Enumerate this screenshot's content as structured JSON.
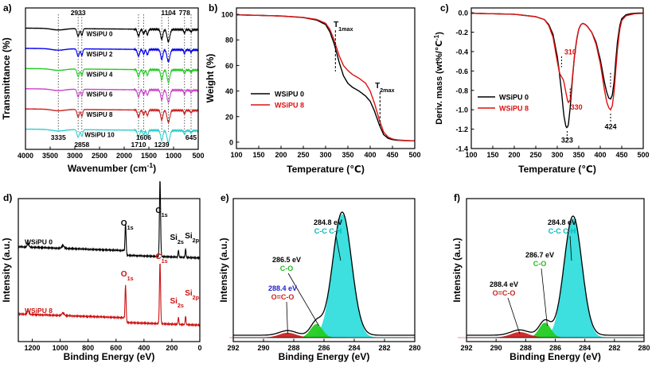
{
  "chart_data": [
    {
      "id": "a",
      "panel_label": "a)",
      "type": "line",
      "title": "",
      "xlabel": "Wavenumber (cm",
      "xlabel_sup": "-1",
      "xlabel_tail": ")",
      "ylabel": "Transmittance (%)",
      "xlim": [
        4000,
        500
      ],
      "ylim": [
        0,
        7
      ],
      "xticks": [
        "4000",
        "3500",
        "3000",
        "2500",
        "2000",
        "1500",
        "1000",
        "500"
      ],
      "xtick_values": [
        4000,
        3500,
        3000,
        2500,
        2000,
        1500,
        1000,
        500
      ],
      "baseline_offsets": [
        6,
        5,
        4,
        3,
        2,
        1
      ],
      "series": [
        {
          "name": "WSiPU 0",
          "color": "#000000"
        },
        {
          "name": "WSiPU 2",
          "color": "#0000ee"
        },
        {
          "name": "WSiPU 4",
          "color": "#22cc22"
        },
        {
          "name": "WSiPU 6",
          "color": "#cc44cc"
        },
        {
          "name": "WSiPU 8",
          "color": "#cc2222"
        },
        {
          "name": "WSiPU 10",
          "color": "#33cccc"
        }
      ],
      "peaks": [
        {
          "x": 3335,
          "depth": 0.1,
          "width": 130
        },
        {
          "x": 2933,
          "depth": 0.5,
          "width": 22
        },
        {
          "x": 2858,
          "depth": 0.45,
          "width": 18
        },
        {
          "x": 1710,
          "depth": 0.45,
          "width": 22
        },
        {
          "x": 1606,
          "depth": 0.3,
          "width": 18
        },
        {
          "x": 1530,
          "depth": 0.35,
          "width": 18
        },
        {
          "x": 1239,
          "depth": 0.65,
          "width": 22
        },
        {
          "x": 1104,
          "depth": 0.8,
          "width": 28
        },
        {
          "x": 778,
          "depth": 0.25,
          "width": 14
        },
        {
          "x": 645,
          "depth": 0.15,
          "width": 14
        }
      ],
      "top_labels": [
        {
          "x": 2933,
          "text": "2933"
        },
        {
          "x": 1104,
          "text": "1104"
        },
        {
          "x": 778,
          "text": "778"
        }
      ],
      "bottom_labels": [
        {
          "x": 3335,
          "text": "3335",
          "row": 0
        },
        {
          "x": 2858,
          "text": "2858",
          "row": 1
        },
        {
          "x": 1710,
          "text": "1710",
          "row": 1
        },
        {
          "x": 1606,
          "text": "1606",
          "row": 0
        },
        {
          "x": 1239,
          "text": "1239",
          "row": 1
        },
        {
          "x": 645,
          "text": "645",
          "row": 0
        }
      ],
      "guide_lines": [
        3335,
        2933,
        2858,
        1710,
        1606,
        1239,
        1104,
        778,
        645
      ]
    },
    {
      "id": "b",
      "panel_label": "b)",
      "type": "line",
      "xlabel": "Temperature (℃)",
      "ylabel": "Weight (%)",
      "xlim": [
        100,
        500
      ],
      "ylim": [
        -5,
        105
      ],
      "xticks": [
        100,
        150,
        200,
        250,
        300,
        350,
        400,
        450,
        500
      ],
      "yticks": [
        0,
        20,
        40,
        60,
        80,
        100
      ],
      "series": [
        {
          "name": "WSiPU 0",
          "color": "#000000",
          "x": [
            100,
            150,
            200,
            250,
            280,
            300,
            310,
            320,
            330,
            340,
            350,
            360,
            375,
            390,
            400,
            410,
            420,
            430,
            440,
            450,
            460,
            480,
            500
          ],
          "y": [
            99.6,
            99.2,
            98.7,
            97.5,
            95.5,
            92,
            86,
            76,
            63,
            52,
            46,
            43,
            40,
            36,
            32,
            24,
            14,
            6,
            3,
            2,
            1.5,
            1.2,
            1.0
          ]
        },
        {
          "name": "WSiPU 8",
          "color": "#dd1111",
          "x": [
            100,
            150,
            200,
            250,
            280,
            300,
            310,
            320,
            330,
            340,
            350,
            360,
            375,
            390,
            400,
            410,
            420,
            430,
            440,
            450,
            460,
            480,
            500
          ],
          "y": [
            99.6,
            99.2,
            98.7,
            97.6,
            96,
            93,
            88,
            79,
            68,
            60,
            56,
            53,
            50,
            46,
            40,
            30,
            18,
            8,
            4,
            2.5,
            1.8,
            1.3,
            1.0
          ]
        }
      ],
      "annotations": [
        {
          "text": "T",
          "sub": "1max",
          "x": 322
        },
        {
          "text": "T",
          "sub": "2max",
          "x": 422
        }
      ],
      "legend_placement": "center-left"
    },
    {
      "id": "c",
      "panel_label": "c)",
      "type": "line",
      "xlabel": "Temperature (℃)",
      "ylabel": "Deriv. mass (wt%/℃",
      "ylabel_sup": "-1",
      "ylabel_tail": ")",
      "xlim": [
        100,
        500
      ],
      "ylim": [
        -1.4,
        0.05
      ],
      "xticks": [
        100,
        150,
        200,
        250,
        300,
        350,
        400,
        450,
        500
      ],
      "yticks": [
        0.0,
        -0.2,
        -0.4,
        -0.6,
        -0.8,
        -1.0,
        -1.2,
        -1.4
      ],
      "ytick_labels": [
        "0.0",
        "-0.2",
        "-0.4",
        "-0.6",
        "-0.8",
        "-1.0",
        "-1.2",
        "-1.4"
      ],
      "series": [
        {
          "name": "WSiPU 0",
          "color": "#000000",
          "x": [
            100,
            150,
            200,
            250,
            270,
            280,
            290,
            300,
            305,
            310,
            315,
            320,
            323,
            326,
            330,
            335,
            340,
            345,
            350,
            355,
            360,
            365,
            370,
            380,
            390,
            400,
            405,
            410,
            415,
            420,
            424,
            428,
            432,
            436,
            440,
            445,
            450,
            460,
            470,
            480,
            490,
            500
          ],
          "y": [
            -0.005,
            -0.01,
            -0.015,
            -0.04,
            -0.07,
            -0.12,
            -0.22,
            -0.45,
            -0.62,
            -0.82,
            -1.05,
            -1.17,
            -1.19,
            -1.15,
            -0.98,
            -0.7,
            -0.45,
            -0.28,
            -0.17,
            -0.12,
            -0.11,
            -0.12,
            -0.14,
            -0.2,
            -0.3,
            -0.48,
            -0.6,
            -0.72,
            -0.82,
            -0.88,
            -0.89,
            -0.85,
            -0.72,
            -0.5,
            -0.3,
            -0.14,
            -0.06,
            -0.02,
            -0.01,
            -0.005,
            -0.003,
            -0.002
          ]
        },
        {
          "name": "WSiPU 8",
          "color": "#dd1111",
          "x": [
            100,
            150,
            200,
            250,
            270,
            280,
            290,
            300,
            305,
            310,
            315,
            320,
            325,
            330,
            335,
            340,
            345,
            350,
            355,
            360,
            365,
            370,
            380,
            390,
            400,
            405,
            410,
            415,
            420,
            424,
            428,
            432,
            436,
            440,
            445,
            450,
            460,
            470,
            480,
            490,
            500
          ],
          "y": [
            -0.005,
            -0.01,
            -0.015,
            -0.04,
            -0.07,
            -0.13,
            -0.25,
            -0.5,
            -0.62,
            -0.66,
            -0.7,
            -0.82,
            -0.93,
            -0.9,
            -0.68,
            -0.45,
            -0.28,
            -0.17,
            -0.12,
            -0.11,
            -0.12,
            -0.14,
            -0.2,
            -0.32,
            -0.52,
            -0.66,
            -0.8,
            -0.92,
            -0.98,
            -1.0,
            -0.96,
            -0.82,
            -0.6,
            -0.38,
            -0.18,
            -0.08,
            -0.03,
            -0.02,
            -0.01,
            -0.008,
            -0.005
          ]
        }
      ],
      "annotations": [
        {
          "text": "310",
          "x": 310,
          "y": -0.6,
          "color": "#dd1111"
        },
        {
          "text": "330",
          "x": 330,
          "y": -0.95,
          "color": "#dd1111"
        },
        {
          "text": "323",
          "x": 323,
          "y": -1.19,
          "color": "#000000"
        },
        {
          "text": "424",
          "x": 424,
          "y": -0.89,
          "color": "#000000"
        }
      ],
      "legend_placement": "lower-left"
    },
    {
      "id": "d",
      "panel_label": "d)",
      "type": "line",
      "xlabel": "Binding Energy (eV)",
      "ylabel": "Intensity (a.u.)",
      "xlim": [
        1300,
        0
      ],
      "ylim": [
        0,
        10
      ],
      "xticks": [
        1200,
        1000,
        800,
        600,
        400,
        200,
        0
      ],
      "series": [
        {
          "name": "WSiPU 0",
          "color": "#000000",
          "baseline": 6.3
        },
        {
          "name": "WSiPU 8",
          "color": "#cc1111",
          "baseline": 1.6
        }
      ],
      "peak_labels": [
        {
          "text": "C",
          "sub": "1s",
          "x": 285
        },
        {
          "text": "O",
          "sub": "1s",
          "x": 532
        },
        {
          "text": "Si",
          "sub": "2s",
          "x": 153
        },
        {
          "text": "Si",
          "sub": "2p",
          "x": 102
        }
      ]
    },
    {
      "id": "e",
      "panel_label": "e)",
      "type": "area",
      "xlabel": "Binding Energy (eV)",
      "ylabel": "Intensity (a.u.)",
      "xlim": [
        292,
        280
      ],
      "ylim": [
        0,
        1.08
      ],
      "xticks": [
        292,
        290,
        288,
        286,
        284,
        282,
        280
      ],
      "components": [
        {
          "name": "C-C  C-H",
          "center": 284.8,
          "height": 0.93,
          "sigma": 0.62,
          "color": "#33dddd"
        },
        {
          "name": "C-O",
          "center": 286.5,
          "height": 0.1,
          "sigma": 0.38,
          "color": "#22cc22"
        },
        {
          "name": "O=C-O",
          "center": 288.4,
          "height": 0.035,
          "sigma": 0.55,
          "color": "#cc2222"
        }
      ],
      "labels": [
        {
          "ev": "284.8 eV",
          "name": "C-C  C-H",
          "name_color": "#00bbbb",
          "ev_color": "#000000"
        },
        {
          "ev": "286.5 eV",
          "name": "C-O",
          "name_color": "#22bb22",
          "ev_color": "#000000"
        },
        {
          "ev": "288.4 eV",
          "name": "O=C-O",
          "name_color": "#cc2222",
          "ev_color": "#2222cc"
        }
      ]
    },
    {
      "id": "f",
      "panel_label": "f)",
      "type": "area",
      "xlabel": "Binding Energy (eV)",
      "ylabel": "Intensity (a.u.)",
      "xlim": [
        292,
        280
      ],
      "ylim": [
        0,
        1.08
      ],
      "xticks": [
        292,
        290,
        288,
        286,
        284,
        282,
        280
      ],
      "components": [
        {
          "name": "C-C  C-H",
          "center": 284.8,
          "height": 0.9,
          "sigma": 0.6,
          "color": "#33dddd"
        },
        {
          "name": "C-O",
          "center": 286.7,
          "height": 0.11,
          "sigma": 0.38,
          "color": "#22cc22"
        },
        {
          "name": "O=C-O",
          "center": 288.4,
          "height": 0.04,
          "sigma": 0.6,
          "color": "#cc2222"
        }
      ],
      "labels": [
        {
          "ev": "284.8 eV",
          "name": "C-C  C-H",
          "name_color": "#00bbbb",
          "ev_color": "#000000"
        },
        {
          "ev": "286.7 eV",
          "name": "C-O",
          "name_color": "#22bb22",
          "ev_color": "#000000"
        },
        {
          "ev": "288.4 eV",
          "name": "O=C-O",
          "name_color": "#cc2222",
          "ev_color": "#000000"
        }
      ]
    }
  ]
}
